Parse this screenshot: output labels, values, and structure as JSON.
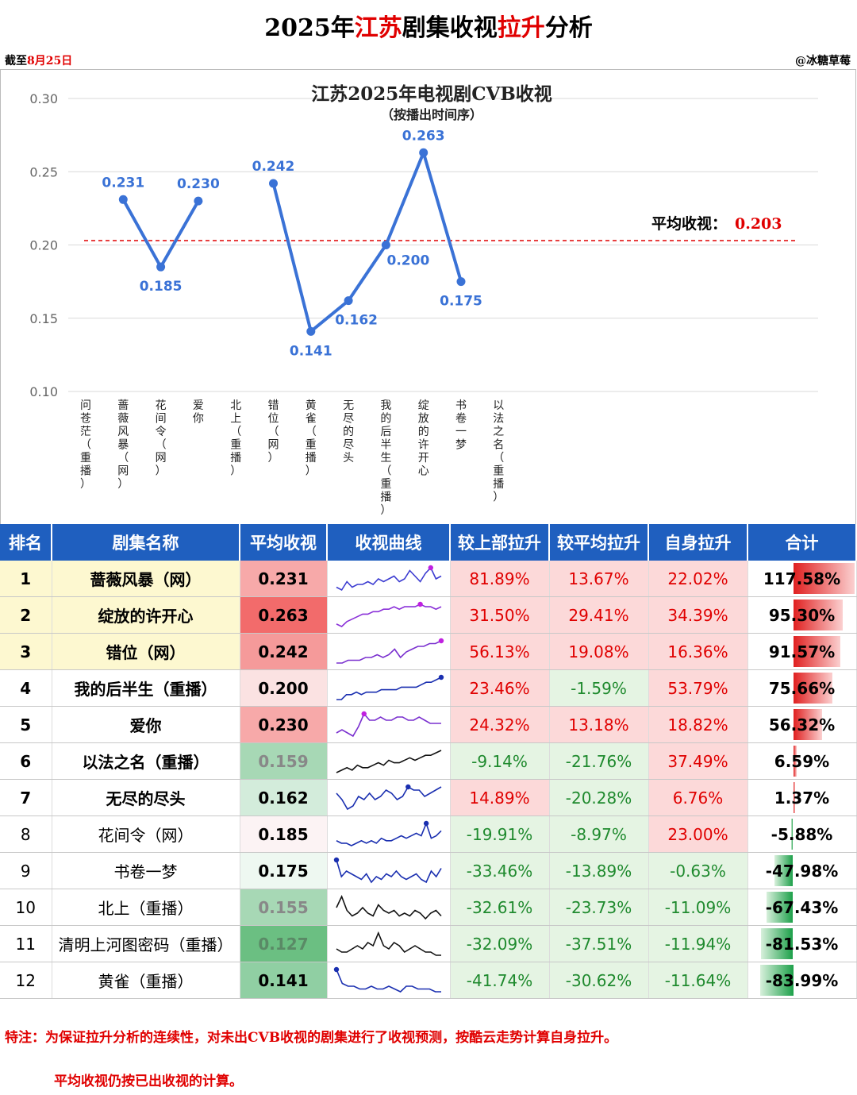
{
  "header": {
    "title_pre": "2025年",
    "title_red1": "江苏",
    "title_mid": "剧集收视",
    "title_red2": "拉升",
    "title_post": "分析",
    "date_pre": "截至",
    "date_red": "8月25日",
    "author": "@冰糖草莓"
  },
  "chart_data": {
    "type": "line",
    "title": "江苏2025年电视剧CVB收视",
    "subtitle": "（按播出时间序）",
    "categories": [
      "问苍茫（重播）",
      "蔷薇风暴（网）",
      "花间令（网）",
      "爱你",
      "北上（重播）",
      "错位（网）",
      "黄雀（重播）",
      "无尽的尽头",
      "我的后半生（重播）",
      "绽放的许开心",
      "书卷一梦",
      "以法之名（重播）"
    ],
    "values": [
      null,
      0.231,
      0.185,
      0.23,
      null,
      0.242,
      0.141,
      0.162,
      0.2,
      0.263,
      0.175,
      null
    ],
    "labels": [
      "",
      "0.231",
      "0.185",
      "0.230",
      "",
      "0.242",
      "0.141",
      "0.162",
      "0.200",
      "0.263",
      "0.175",
      ""
    ],
    "ylim": [
      0.1,
      0.3
    ],
    "yticks": [
      "0.30",
      "0.25",
      "0.20",
      "0.15",
      "0.10"
    ],
    "average": 0.203,
    "average_label": "平均收视：",
    "average_value": "0.203",
    "line_color": "#3a72d6",
    "avg_color": "#e00000"
  },
  "table": {
    "headers": [
      "排名",
      "剧集名称",
      "平均收视",
      "收视曲线",
      "较上部拉升",
      "较平均拉升",
      "自身拉升",
      "合计"
    ],
    "rows": [
      {
        "rank": "1",
        "name": "蔷薇风暴（网）",
        "avg": "0.231",
        "prev": "81.89%",
        "vsavg": "13.67%",
        "self": "22.02%",
        "total": "117.58%",
        "total_num": 117.58,
        "bold": true,
        "hl": true,
        "spark": [
          3,
          2,
          5,
          3,
          4,
          4,
          5,
          4,
          6,
          5,
          6,
          7,
          5,
          6,
          9,
          7,
          5,
          8,
          10,
          6,
          7
        ],
        "spark_color": "#3b3bd1",
        "spark_peak": 18
      },
      {
        "rank": "2",
        "name": "绽放的许开心",
        "avg": "0.263",
        "prev": "31.50%",
        "vsavg": "29.41%",
        "self": "34.39%",
        "total": "95.30%",
        "total_num": 95.3,
        "bold": true,
        "hl": true,
        "spark": [
          2,
          1,
          3,
          4,
          5,
          6,
          6,
          7,
          7,
          8,
          8,
          9,
          8,
          9,
          9,
          9,
          10,
          9,
          9,
          8,
          9
        ],
        "spark_color": "#8a30d8",
        "spark_peak": 16
      },
      {
        "rank": "3",
        "name": "错位（网）",
        "avg": "0.242",
        "prev": "56.13%",
        "vsavg": "19.08%",
        "self": "16.36%",
        "total": "91.57%",
        "total_num": 91.57,
        "bold": true,
        "hl": true,
        "spark": [
          2,
          2,
          3,
          3,
          3,
          4,
          4,
          5,
          4,
          5,
          7,
          4,
          6,
          7,
          8,
          8,
          9,
          9,
          10
        ],
        "spark_color": "#7a30cf",
        "spark_peak": 18
      },
      {
        "rank": "4",
        "name": "我的后半生（重播）",
        "avg": "0.200",
        "prev": "23.46%",
        "vsavg": "-1.59%",
        "self": "53.79%",
        "total": "75.66%",
        "total_num": 75.66,
        "bold": true,
        "hl": false,
        "spark": [
          1,
          1,
          3,
          3,
          4,
          3,
          4,
          4,
          4,
          5,
          5,
          5,
          5,
          6,
          6,
          6,
          6,
          7,
          8,
          8,
          9,
          10
        ],
        "spark_color": "#1a2fb0",
        "spark_peak": 21
      },
      {
        "rank": "5",
        "name": "爱你",
        "avg": "0.230",
        "prev": "24.32%",
        "vsavg": "13.18%",
        "self": "18.82%",
        "total": "56.32%",
        "total_num": 56.32,
        "bold": true,
        "hl": false,
        "spark": [
          3,
          4,
          3,
          2,
          5,
          9,
          7,
          7,
          8,
          7,
          7,
          8,
          8,
          7,
          7,
          8,
          7,
          6,
          6,
          6
        ],
        "spark_color": "#7a30cf",
        "spark_peak": 5
      },
      {
        "rank": "6",
        "name": "以法之名（重播）",
        "avg": "0.159",
        "prev": "-9.14%",
        "vsavg": "-21.76%",
        "self": "37.49%",
        "total": "6.59%",
        "total_num": 6.59,
        "bold": true,
        "hl": false,
        "spark": [
          1,
          2,
          3,
          2,
          4,
          3,
          3,
          4,
          5,
          4,
          6,
          5,
          5,
          6,
          7,
          6,
          7,
          8,
          8,
          9,
          10
        ],
        "spark_color": "#111111",
        "spark_peak": -1
      },
      {
        "rank": "7",
        "name": "无尽的尽头",
        "avg": "0.162",
        "prev": "14.89%",
        "vsavg": "-20.28%",
        "self": "6.76%",
        "total": "1.37%",
        "total_num": 1.37,
        "bold": true,
        "hl": false,
        "spark": [
          7,
          5,
          2,
          3,
          6,
          5,
          7,
          5,
          6,
          8,
          7,
          5,
          6,
          9,
          8,
          8,
          6,
          7,
          8,
          9
        ],
        "spark_color": "#1a2fb0",
        "spark_peak": 13
      },
      {
        "rank": "8",
        "name": "花间令（网）",
        "avg": "0.185",
        "prev": "-19.91%",
        "vsavg": "-8.97%",
        "self": "23.00%",
        "total": "-5.88%",
        "total_num": -5.88,
        "bold": false,
        "hl": false,
        "spark": [
          3,
          2,
          2,
          1,
          2,
          3,
          2,
          3,
          2,
          4,
          3,
          3,
          4,
          5,
          4,
          5,
          6,
          5,
          10,
          4,
          5,
          7
        ],
        "spark_color": "#1a2fb0",
        "spark_peak": 18
      },
      {
        "rank": "9",
        "name": "书卷一梦",
        "avg": "0.175",
        "prev": "-33.46%",
        "vsavg": "-13.89%",
        "self": "-0.63%",
        "total": "-47.98%",
        "total_num": -47.98,
        "bold": false,
        "hl": false,
        "spark": [
          10,
          4,
          6,
          5,
          4,
          3,
          5,
          2,
          4,
          3,
          5,
          4,
          6,
          4,
          3,
          4,
          5,
          3,
          2,
          6,
          4,
          7
        ],
        "spark_color": "#1a2fb0",
        "spark_peak": 0
      },
      {
        "rank": "10",
        "name": "北上（重播）",
        "avg": "0.155",
        "prev": "-32.61%",
        "vsavg": "-23.73%",
        "self": "-11.09%",
        "total": "-67.43%",
        "total_num": -67.43,
        "bold": false,
        "hl": false,
        "spark": [
          6,
          10,
          5,
          3,
          4,
          6,
          4,
          3,
          7,
          5,
          4,
          5,
          3,
          4,
          3,
          5,
          4,
          2,
          4,
          5,
          3
        ],
        "spark_color": "#111111",
        "spark_peak": -1
      },
      {
        "rank": "11",
        "name": "清明上河图密码（重播）",
        "avg": "0.127",
        "prev": "-32.09%",
        "vsavg": "-37.51%",
        "self": "-11.94%",
        "total": "-81.53%",
        "total_num": -81.53,
        "bold": false,
        "hl": false,
        "spark": [
          5,
          4,
          4,
          5,
          6,
          5,
          7,
          6,
          10,
          6,
          5,
          7,
          6,
          4,
          5,
          6,
          5,
          4,
          4,
          3,
          3
        ],
        "spark_color": "#111111",
        "spark_peak": -1
      },
      {
        "rank": "12",
        "name": "黄雀（重播）",
        "avg": "0.141",
        "prev": "-41.74%",
        "vsavg": "-30.62%",
        "self": "-11.64%",
        "total": "-83.99%",
        "total_num": -83.99,
        "bold": false,
        "hl": false,
        "spark": [
          10,
          5,
          4,
          4,
          3,
          3,
          4,
          3,
          3,
          4,
          3,
          2,
          4,
          4,
          3,
          3,
          3,
          2,
          2
        ],
        "spark_color": "#1a2fb0",
        "spark_peak": 0
      }
    ]
  },
  "notes": {
    "line1": "特注：为保证拉升分析的连续性，对未出CVB收视的剧集进行了收视预测，按酷云走势计算自身拉升。",
    "line2": "平均收视仍按已出收视的计算。"
  }
}
